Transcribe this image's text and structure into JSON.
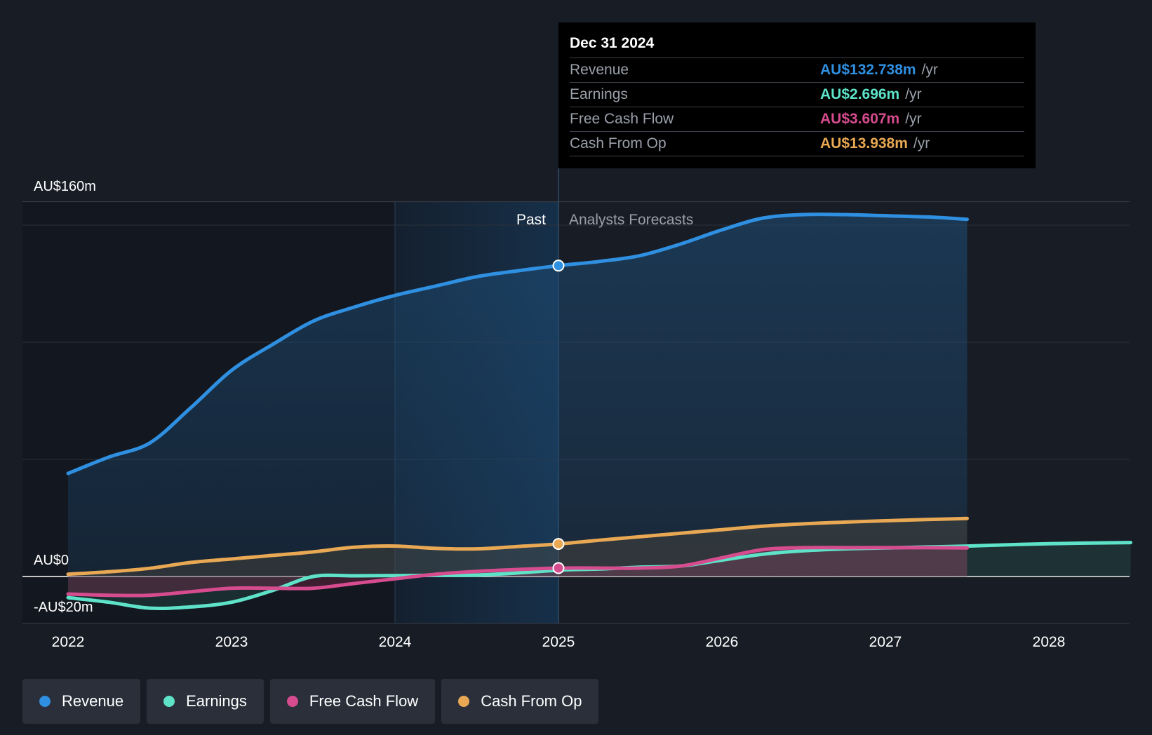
{
  "chart_data": {
    "type": "area",
    "y_axis": {
      "labels": [
        "AU$160m",
        "AU$0",
        "-AU$20m"
      ],
      "ylim": [
        -20,
        160
      ]
    },
    "x_axis": {
      "ticks": [
        "2022",
        "2023",
        "2024",
        "2025",
        "2026",
        "2027",
        "2028"
      ],
      "xlim": [
        2021.7,
        2028.5
      ]
    },
    "regions": {
      "past_label": "Past",
      "forecast_label": "Analysts Forecasts",
      "divider_x": 2025.0,
      "highlight_start": 2024.0
    },
    "series": [
      {
        "name": "Revenue",
        "color": "#2f8fe0",
        "points": [
          [
            2022.0,
            44
          ],
          [
            2022.25,
            51
          ],
          [
            2022.5,
            57
          ],
          [
            2022.75,
            72
          ],
          [
            2023.0,
            88
          ],
          [
            2023.25,
            99
          ],
          [
            2023.5,
            109
          ],
          [
            2023.75,
            115
          ],
          [
            2024.0,
            120
          ],
          [
            2024.25,
            124
          ],
          [
            2024.5,
            128
          ],
          [
            2024.75,
            130.5
          ],
          [
            2025.0,
            132.7
          ],
          [
            2025.25,
            134.5
          ],
          [
            2025.5,
            137
          ],
          [
            2025.75,
            142
          ],
          [
            2026.0,
            148
          ],
          [
            2026.25,
            153
          ],
          [
            2026.5,
            154.5
          ],
          [
            2026.75,
            154.5
          ],
          [
            2027.0,
            154
          ],
          [
            2027.25,
            153.5
          ],
          [
            2027.5,
            152.5
          ]
        ]
      },
      {
        "name": "Earnings",
        "color": "#5ee3c9",
        "points": [
          [
            2022.0,
            -9
          ],
          [
            2022.25,
            -11
          ],
          [
            2022.5,
            -13.5
          ],
          [
            2022.75,
            -13
          ],
          [
            2023.0,
            -11
          ],
          [
            2023.25,
            -6
          ],
          [
            2023.5,
            0
          ],
          [
            2023.75,
            0.3
          ],
          [
            2024.0,
            0.4
          ],
          [
            2024.25,
            0.5
          ],
          [
            2024.5,
            0.6
          ],
          [
            2024.75,
            1.5
          ],
          [
            2025.0,
            2.7
          ],
          [
            2025.25,
            3.2
          ],
          [
            2025.5,
            4.0
          ],
          [
            2025.75,
            4.5
          ],
          [
            2026.0,
            7.0
          ],
          [
            2026.25,
            9.5
          ],
          [
            2026.5,
            11
          ],
          [
            2026.75,
            11.8
          ],
          [
            2027.0,
            12.2
          ],
          [
            2027.25,
            12.6
          ],
          [
            2027.5,
            13.0
          ],
          [
            2028.0,
            14.0
          ],
          [
            2028.5,
            14.5
          ]
        ]
      },
      {
        "name": "Free Cash Flow",
        "color": "#d64c8e",
        "points": [
          [
            2022.0,
            -7.5
          ],
          [
            2022.25,
            -8
          ],
          [
            2022.5,
            -8
          ],
          [
            2022.75,
            -6.5
          ],
          [
            2023.0,
            -5
          ],
          [
            2023.25,
            -5
          ],
          [
            2023.5,
            -5
          ],
          [
            2023.75,
            -3
          ],
          [
            2024.0,
            -1
          ],
          [
            2024.25,
            1
          ],
          [
            2024.5,
            2.2
          ],
          [
            2024.75,
            3.0
          ],
          [
            2025.0,
            3.6
          ],
          [
            2025.25,
            3.6
          ],
          [
            2025.5,
            3.6
          ],
          [
            2025.75,
            4.5
          ],
          [
            2026.0,
            8.0
          ],
          [
            2026.25,
            11.5
          ],
          [
            2026.5,
            12.3
          ],
          [
            2026.75,
            12.3
          ],
          [
            2027.0,
            12.3
          ],
          [
            2027.25,
            12.3
          ],
          [
            2027.5,
            12.2
          ]
        ]
      },
      {
        "name": "Cash From Op",
        "color": "#e8a854",
        "points": [
          [
            2022.0,
            1.0
          ],
          [
            2022.25,
            2
          ],
          [
            2022.5,
            3.5
          ],
          [
            2022.75,
            6
          ],
          [
            2023.0,
            7.5
          ],
          [
            2023.25,
            9
          ],
          [
            2023.5,
            10.5
          ],
          [
            2023.75,
            12.5
          ],
          [
            2024.0,
            13
          ],
          [
            2024.25,
            12
          ],
          [
            2024.5,
            11.8
          ],
          [
            2024.75,
            12.8
          ],
          [
            2025.0,
            13.9
          ],
          [
            2025.25,
            15.5
          ],
          [
            2025.5,
            17
          ],
          [
            2025.75,
            18.5
          ],
          [
            2026.0,
            20
          ],
          [
            2026.25,
            21.5
          ],
          [
            2026.5,
            22.5
          ],
          [
            2026.75,
            23.2
          ],
          [
            2027.0,
            23.8
          ],
          [
            2027.25,
            24.3
          ],
          [
            2027.5,
            24.8
          ]
        ]
      }
    ],
    "highlight_markers": {
      "x": 2025.0,
      "values": {
        "Revenue": 132.7,
        "Free Cash Flow": 3.6,
        "Cash From Op": 13.9
      }
    }
  },
  "tooltip": {
    "date": "Dec 31 2024",
    "rows": [
      {
        "label": "Revenue",
        "value": "AU$132.738m",
        "unit": "/yr",
        "color": "#2f8fe0"
      },
      {
        "label": "Earnings",
        "value": "AU$2.696m",
        "unit": "/yr",
        "color": "#5ee3c9"
      },
      {
        "label": "Free Cash Flow",
        "value": "AU$3.607m",
        "unit": "/yr",
        "color": "#d64c8e"
      },
      {
        "label": "Cash From Op",
        "value": "AU$13.938m",
        "unit": "/yr",
        "color": "#e8a854"
      }
    ]
  },
  "legend": [
    {
      "label": "Revenue",
      "color": "#2f8fe0"
    },
    {
      "label": "Earnings",
      "color": "#5ee3c9"
    },
    {
      "label": "Free Cash Flow",
      "color": "#d64c8e"
    },
    {
      "label": "Cash From Op",
      "color": "#e8a854"
    }
  ]
}
